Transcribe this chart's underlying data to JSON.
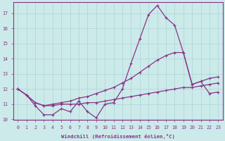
{
  "xlabel": "Windchill (Refroidissement éolien,°C)",
  "background_color": "#cceaea",
  "grid_color": "#aad4d4",
  "line_color": "#883388",
  "x_values": [
    0,
    1,
    2,
    3,
    4,
    5,
    6,
    7,
    8,
    9,
    10,
    11,
    12,
    13,
    14,
    15,
    16,
    17,
    18,
    19,
    20,
    21,
    22,
    23
  ],
  "line1": [
    12.0,
    11.6,
    10.9,
    10.3,
    10.3,
    10.7,
    10.5,
    11.2,
    10.5,
    10.1,
    11.0,
    11.1,
    12.0,
    13.7,
    15.3,
    16.9,
    17.5,
    16.7,
    16.2,
    14.4,
    12.3,
    12.5,
    11.7,
    11.8
  ],
  "line2": [
    12.0,
    11.6,
    11.1,
    10.9,
    11.0,
    11.1,
    11.2,
    11.4,
    11.5,
    11.7,
    11.9,
    12.1,
    12.4,
    12.7,
    13.1,
    13.5,
    13.9,
    14.2,
    14.4,
    14.4,
    12.3,
    12.5,
    12.7,
    12.8
  ],
  "line3": [
    12.0,
    11.6,
    11.1,
    10.9,
    10.9,
    11.0,
    11.0,
    11.0,
    11.1,
    11.1,
    11.2,
    11.3,
    11.4,
    11.5,
    11.6,
    11.7,
    11.8,
    11.9,
    12.0,
    12.1,
    12.1,
    12.2,
    12.3,
    12.4
  ],
  "ylim": [
    10,
    17.5
  ],
  "xlim": [
    -0.5,
    23.5
  ],
  "yticks": [
    10,
    11,
    12,
    13,
    14,
    15,
    16,
    17
  ],
  "xticks": [
    0,
    1,
    2,
    3,
    4,
    5,
    6,
    7,
    8,
    9,
    10,
    11,
    12,
    13,
    14,
    15,
    16,
    17,
    18,
    19,
    20,
    21,
    22,
    23
  ]
}
